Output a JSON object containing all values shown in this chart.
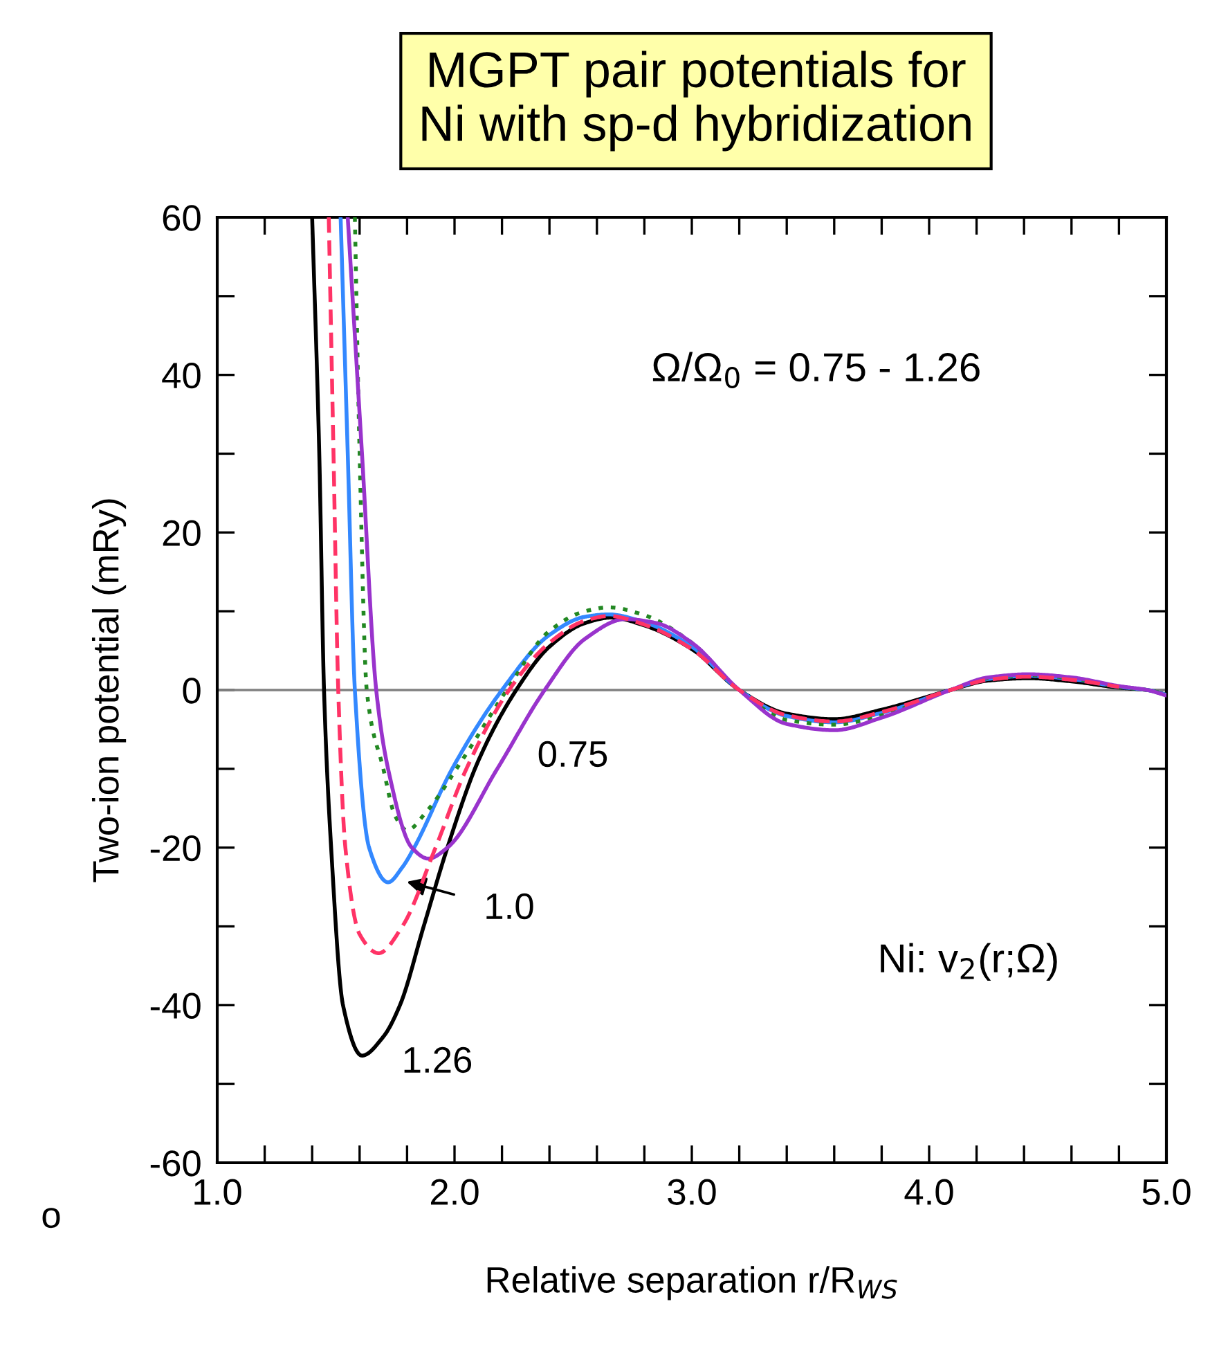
{
  "chart_data": {
    "type": "line",
    "title": "MGPT pair potentials for\nNi with sp-d hybridization",
    "xlabel": "Relative separation r/R$_{WS}$",
    "ylabel": "Two-ion potential (mRy)",
    "xlim": [
      1.0,
      5.0
    ],
    "ylim": [
      -60,
      60
    ],
    "xticks": [
      {
        "value": 1.0,
        "label": "1.0"
      },
      {
        "value": 1.2,
        "label": null
      },
      {
        "value": 1.4,
        "label": null
      },
      {
        "value": 1.6,
        "label": null
      },
      {
        "value": 1.8,
        "label": null
      },
      {
        "value": 2.0,
        "label": "2.0"
      },
      {
        "value": 2.2,
        "label": null
      },
      {
        "value": 2.4,
        "label": null
      },
      {
        "value": 2.6,
        "label": null
      },
      {
        "value": 2.8,
        "label": null
      },
      {
        "value": 3.0,
        "label": "3.0"
      },
      {
        "value": 3.2,
        "label": null
      },
      {
        "value": 3.4,
        "label": null
      },
      {
        "value": 3.6,
        "label": null
      },
      {
        "value": 3.8,
        "label": null
      },
      {
        "value": 4.0,
        "label": "4.0"
      },
      {
        "value": 4.2,
        "label": null
      },
      {
        "value": 4.4,
        "label": null
      },
      {
        "value": 4.6,
        "label": null
      },
      {
        "value": 4.8,
        "label": null
      },
      {
        "value": 5.0,
        "label": "5.0"
      }
    ],
    "yticks": [
      -60,
      {
        "value": -50,
        "label": null
      },
      -40,
      {
        "value": -30,
        "label": null
      },
      -20,
      {
        "value": -10,
        "label": null
      },
      0,
      {
        "value": 10,
        "label": null
      },
      20,
      {
        "value": 30,
        "label": null
      },
      40,
      {
        "value": 50,
        "label": null
      },
      60
    ],
    "grid": false,
    "legend": false,
    "marker": "none",
    "ref_lines": [
      {
        "axis": "y",
        "value": 0,
        "color": "#808080"
      }
    ],
    "series": [
      {
        "color": "#000000",
        "line_style": "solid",
        "x": [
          1.4,
          1.43,
          1.45,
          1.48,
          1.53,
          1.61,
          1.7,
          1.77,
          1.87,
          1.97,
          2.1,
          2.26,
          2.4,
          2.55,
          2.66,
          2.8,
          3.0,
          3.2,
          3.4,
          3.6,
          3.8,
          4.09,
          4.25,
          4.42,
          4.6,
          4.8,
          4.92,
          5.0
        ],
        "values": [
          60,
          30,
          0,
          -20,
          -40,
          -46.4,
          -44,
          -40,
          -30,
          -20,
          -9,
          0,
          5.5,
          8.5,
          9.2,
          8.2,
          5.2,
          0,
          -3,
          -3.7,
          -2.5,
          0,
          1.2,
          1.5,
          1.1,
          0.3,
          0,
          -0.6
        ]
      },
      {
        "color": "#ff3366",
        "line_style": "dashed",
        "x": [
          1.47,
          1.49,
          1.51,
          1.54,
          1.6,
          1.68,
          1.78,
          1.92,
          2.05,
          2.23,
          2.4,
          2.55,
          2.65,
          2.8,
          3.0,
          3.2,
          3.4,
          3.6,
          3.8,
          4.09,
          4.25,
          4.42,
          4.6,
          4.8
        ],
        "values": [
          60,
          30,
          0,
          -20,
          -31,
          -33.4,
          -30,
          -20,
          -10,
          0,
          6,
          8.8,
          9.4,
          8.3,
          5.2,
          0,
          -3.2,
          -4,
          -2.8,
          0,
          1.3,
          1.7,
          1.3,
          0.4
        ]
      },
      {
        "color": "#3388ff",
        "line_style": "solid",
        "x": [
          1.52,
          1.55,
          1.58,
          1.64,
          1.72,
          1.78,
          1.83,
          1.99,
          2.2,
          2.4,
          2.55,
          2.65,
          2.8,
          3.0,
          3.2,
          3.4,
          3.6,
          3.8,
          4.09,
          4.25,
          4.42,
          4.6,
          4.8,
          4.92,
          5.0
        ],
        "values": [
          60,
          30,
          0,
          -20,
          -24.4,
          -22.5,
          -20,
          -10,
          0,
          7,
          9.3,
          9.6,
          8.6,
          5.5,
          0,
          -3.3,
          -4.1,
          -2.9,
          0,
          1.4,
          1.8,
          1.4,
          0.4,
          0,
          -0.6
        ]
      },
      {
        "color": "#228822",
        "line_style": "dotted",
        "x": [
          1.58,
          1.6,
          1.63,
          1.7,
          1.75,
          1.8,
          1.88,
          2.03,
          2.22,
          2.4,
          2.55,
          2.65,
          2.8,
          3.0,
          3.2,
          3.4,
          3.6,
          3.8,
          4.09,
          4.25,
          4.42,
          4.6,
          4.8,
          4.92,
          5.0
        ],
        "values": [
          60,
          30,
          0,
          -10,
          -16,
          -17.8,
          -15.5,
          -9,
          0,
          7.5,
          10,
          10.5,
          9.5,
          6,
          0,
          -3.8,
          -4.4,
          -3.2,
          0,
          1.5,
          1.9,
          1.5,
          0.4,
          0,
          -0.6
        ]
      },
      {
        "color": "#9933cc",
        "line_style": "solid",
        "x": [
          1.55,
          1.61,
          1.67,
          1.72,
          1.82,
          1.89,
          1.97,
          2.18,
          2.38,
          2.55,
          2.72,
          2.85,
          3.0,
          3.2,
          3.4,
          3.6,
          3.8,
          4.09,
          4.25,
          4.42,
          4.6,
          4.8,
          4.92,
          5.0
        ],
        "values": [
          60,
          30,
          0,
          -10,
          -20,
          -21.4,
          -20,
          -10,
          0,
          6.5,
          9,
          8.5,
          6,
          0,
          -4.3,
          -5.1,
          -3.5,
          0,
          1.6,
          2.0,
          1.6,
          0.5,
          0,
          -0.7
        ]
      }
    ],
    "annotations": [
      "0.75",
      "1.0",
      "1.26",
      "Ω/Ω$_{0}$ = 0.75 - 1.26",
      "Ni: v$_{2}$(r;Ω)",
      "o"
    ]
  }
}
